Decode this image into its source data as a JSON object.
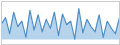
{
  "chart_data": {
    "type": "area",
    "x": [
      0,
      1,
      2,
      3,
      4,
      5,
      6,
      7,
      8,
      9,
      10,
      11,
      12,
      13,
      14,
      15,
      16,
      17,
      18,
      19,
      20,
      21,
      22,
      23,
      24,
      25,
      26,
      27,
      28,
      29
    ],
    "values": [
      25,
      32,
      14,
      38,
      22,
      28,
      10,
      40,
      18,
      35,
      16,
      30,
      20,
      38,
      12,
      36,
      24,
      28,
      8,
      42,
      15,
      30,
      22,
      16,
      35,
      10,
      28,
      20,
      14,
      32
    ],
    "baseline": 7,
    "colors": [
      "#4f8fcc",
      "#5b9fd4"
    ],
    "xlim": [
      0,
      29
    ],
    "ylim": [
      2,
      50
    ],
    "grid": false,
    "tick_labels": false
  }
}
